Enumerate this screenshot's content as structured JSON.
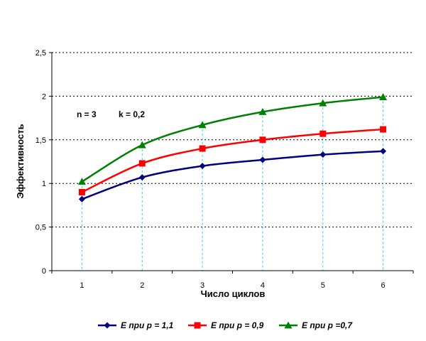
{
  "chart_data": {
    "type": "line",
    "x": [
      1,
      2,
      3,
      4,
      5,
      6
    ],
    "xlabel": "Число циклов",
    "ylabel": "Эффективность",
    "ylim": [
      0,
      2.5
    ],
    "yticks": [
      0,
      0.5,
      1,
      1.5,
      2,
      2.5
    ],
    "ytick_labels": [
      "0",
      "0,5",
      "1",
      "1,5",
      "2",
      "2,5"
    ],
    "xtick_labels": [
      "1",
      "2",
      "3",
      "4",
      "5",
      "6"
    ],
    "grid": "horizontal dotted",
    "drop_lines": "vertical dashed from data points to x-axis",
    "legend_position": "bottom",
    "annotations": [
      "n = 3",
      "k = 0,2"
    ],
    "series": [
      {
        "name": "E при p = 1,1",
        "values": [
          0.82,
          1.07,
          1.2,
          1.27,
          1.33,
          1.37
        ],
        "color": "#000080",
        "marker": "diamond"
      },
      {
        "name": "E при p = 0,9",
        "values": [
          0.9,
          1.23,
          1.4,
          1.5,
          1.57,
          1.62
        ],
        "color": "#ff0000",
        "marker": "square"
      },
      {
        "name": "E при p =0,7",
        "values": [
          1.02,
          1.44,
          1.67,
          1.82,
          1.92,
          1.99
        ],
        "color": "#008000",
        "marker": "triangle"
      }
    ],
    "colors": {
      "grid": "#000000",
      "drop_line": "#33ccff",
      "axis": "#000000"
    }
  }
}
